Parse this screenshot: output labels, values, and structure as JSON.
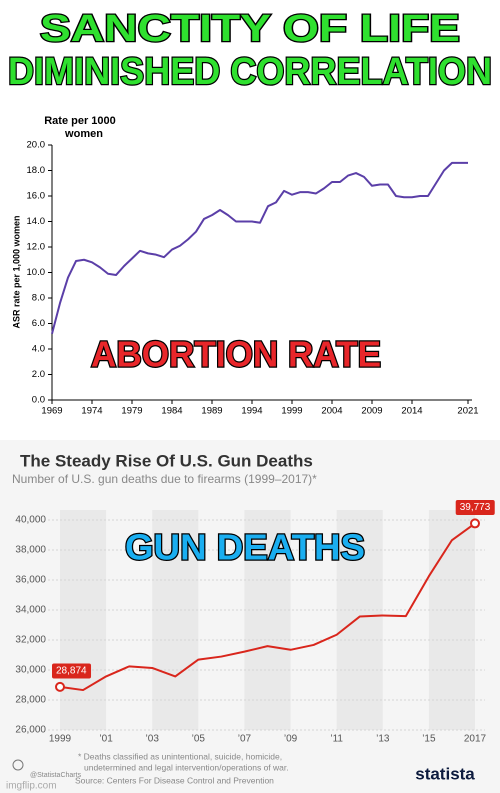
{
  "captions": {
    "top": [
      "SANCTITY OF LIFE",
      "DIMINISHED CORRELATION"
    ],
    "abortion": "ABORTION RATE",
    "guns": "GUN DEATHS"
  },
  "watermark": "imgflip.com",
  "chart_data": [
    {
      "type": "line",
      "title": [
        "Rate per 1000",
        "women"
      ],
      "y_label": "ASR rate per 1,000 women",
      "x": [
        1969,
        1970,
        1971,
        1972,
        1973,
        1974,
        1975,
        1976,
        1977,
        1978,
        1979,
        1980,
        1981,
        1982,
        1983,
        1984,
        1985,
        1986,
        1987,
        1988,
        1989,
        1990,
        1991,
        1992,
        1993,
        1994,
        1995,
        1996,
        1997,
        1998,
        1999,
        2000,
        2001,
        2002,
        2003,
        2004,
        2005,
        2006,
        2007,
        2008,
        2009,
        2010,
        2011,
        2012,
        2013,
        2014,
        2015,
        2016,
        2017,
        2018,
        2019,
        2020,
        2021
      ],
      "series": [
        {
          "color": "#5b3fa8",
          "values": [
            5.2,
            7.6,
            9.6,
            10.9,
            11.0,
            10.8,
            10.4,
            9.9,
            9.8,
            10.5,
            11.1,
            11.7,
            11.5,
            11.4,
            11.2,
            11.8,
            12.1,
            12.6,
            13.2,
            14.2,
            14.5,
            14.9,
            14.5,
            14.0,
            14.0,
            14.0,
            13.9,
            15.2,
            15.5,
            16.4,
            16.1,
            16.3,
            16.3,
            16.2,
            16.6,
            17.1,
            17.1,
            17.6,
            17.8,
            17.5,
            16.8,
            16.9,
            16.9,
            16.0,
            15.9,
            15.9,
            16.0,
            16.0,
            17.0,
            18.0,
            18.6,
            18.6,
            18.6
          ]
        }
      ],
      "xlim": [
        1969,
        2021
      ],
      "ylim": [
        0,
        20
      ],
      "xticks": [
        1969,
        1974,
        1979,
        1984,
        1989,
        1994,
        1999,
        2004,
        2009,
        2014,
        2021
      ],
      "yticks": [
        {
          "value": 0,
          "label": "0.0"
        },
        {
          "value": 2,
          "label": "2.0"
        },
        {
          "value": 4,
          "label": "4.0"
        },
        {
          "value": 6,
          "label": "6.0"
        },
        {
          "value": 8,
          "label": "8.0"
        },
        {
          "value": 10,
          "label": "10.0"
        },
        {
          "value": 12,
          "label": "12.0"
        },
        {
          "value": 14,
          "label": "14.0"
        },
        {
          "value": 16,
          "label": "16.0"
        },
        {
          "value": 18,
          "label": "18.0"
        },
        {
          "value": 20,
          "label": "20.0"
        }
      ],
      "grid": false
    },
    {
      "type": "line",
      "title": "The Steady Rise Of U.S. Gun Deaths",
      "subtitle": "Number of U.S. gun deaths due to firearms (1999–2017)*",
      "x": [
        1999,
        2000,
        2001,
        2002,
        2003,
        2004,
        2005,
        2006,
        2007,
        2008,
        2009,
        2010,
        2011,
        2012,
        2013,
        2014,
        2015,
        2016,
        2017
      ],
      "series": [
        {
          "color": "#d9261c",
          "values": [
            28874,
            28663,
            29573,
            30242,
            30136,
            29569,
            30694,
            30896,
            31224,
            31593,
            31347,
            31672,
            32351,
            33563,
            33636,
            33594,
            36252,
            38658,
            39773
          ],
          "value_labels": [
            "28,874",
            null,
            null,
            null,
            null,
            null,
            null,
            null,
            null,
            null,
            null,
            null,
            null,
            null,
            null,
            null,
            null,
            null,
            "39,773"
          ]
        }
      ],
      "xlim": [
        1999,
        2017
      ],
      "ylim": [
        26000,
        40000
      ],
      "xticks": [
        {
          "value": 1999,
          "label": "1999"
        },
        {
          "value": 2001,
          "label": "’01"
        },
        {
          "value": 2003,
          "label": "’03"
        },
        {
          "value": 2005,
          "label": "’05"
        },
        {
          "value": 2007,
          "label": "’07"
        },
        {
          "value": 2009,
          "label": "’09"
        },
        {
          "value": 2011,
          "label": "’11"
        },
        {
          "value": 2013,
          "label": "’13"
        },
        {
          "value": 2015,
          "label": "’15"
        },
        {
          "value": 2017,
          "label": "2017"
        }
      ],
      "yticks": [
        {
          "value": 26000,
          "label": "26,000"
        },
        {
          "value": 28000,
          "label": "28,000"
        },
        {
          "value": 30000,
          "label": "30,000"
        },
        {
          "value": 32000,
          "label": "32,000"
        },
        {
          "value": 34000,
          "label": "34,000"
        },
        {
          "value": 36000,
          "label": "36,000"
        },
        {
          "value": 38000,
          "label": "38,000"
        },
        {
          "value": 40000,
          "label": "40,000"
        }
      ],
      "grid": true,
      "footnote": [
        "* Deaths classified as unintentional, suicide, homicide,",
        "undetermined and legal intervention/operations of war."
      ],
      "source": "Source: Centers For Disease Control and Prevention",
      "credit": "@StatistaCharts",
      "brand": "statista"
    }
  ]
}
